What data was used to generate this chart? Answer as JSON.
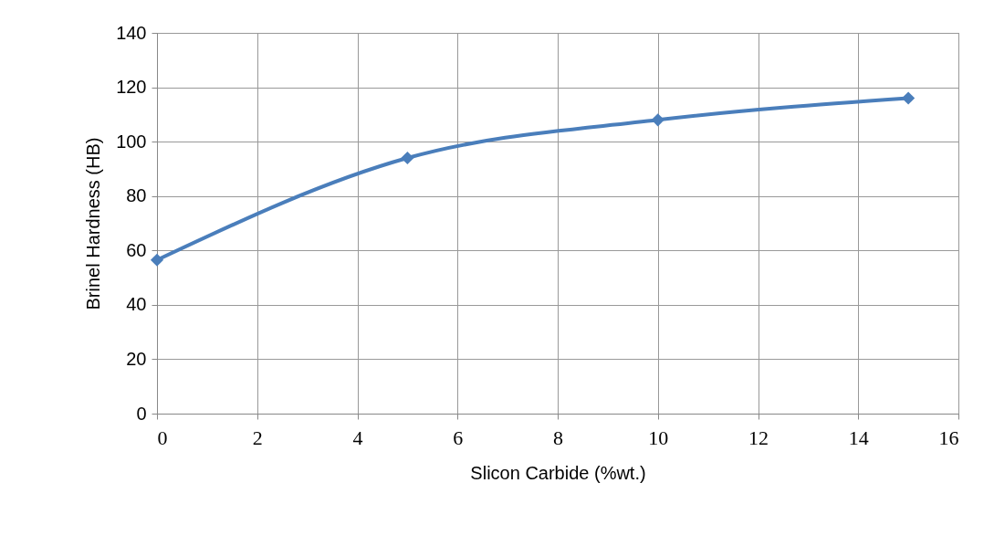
{
  "chart_data": {
    "type": "line",
    "xlabel": "Slicon Carbide (%wt.)",
    "ylabel": "Brinel Hardness (HB)",
    "x": [
      0,
      5,
      10,
      15
    ],
    "series": [
      {
        "color": "#4a7ebb",
        "values": [
          56.5,
          94,
          108,
          116
        ]
      }
    ],
    "xlim": [
      0,
      16
    ],
    "xticks": [
      0,
      2,
      4,
      6,
      8,
      10,
      12,
      14,
      16
    ],
    "ylim": [
      0,
      140
    ],
    "yticks": [
      0,
      20,
      40,
      60,
      80,
      100,
      120,
      140
    ],
    "grid": true,
    "marker": "diamond",
    "line_style": "solid"
  }
}
